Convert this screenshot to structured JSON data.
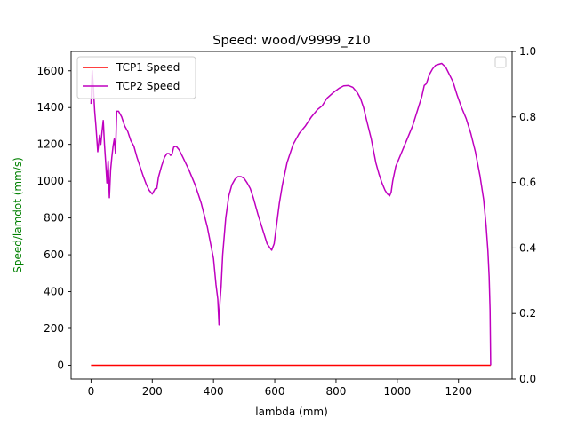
{
  "chart_data": {
    "type": "line",
    "title": "Speed: wood/v9999_z10",
    "xlabel": "lambda (mm)",
    "ylabel": "Speed/lamdot (mm/s)",
    "xlim": [
      -65,
      1375
    ],
    "ylim": [
      -75,
      1705
    ],
    "y2lim": [
      0.0,
      1.0
    ],
    "x_ticks": [
      0,
      200,
      400,
      600,
      800,
      1000,
      1200
    ],
    "y_ticks": [
      0,
      200,
      400,
      600,
      800,
      1000,
      1200,
      1400,
      1600
    ],
    "y2_ticks": [
      "0.0",
      "0.2",
      "0.4",
      "0.6",
      "0.8",
      "1.0"
    ],
    "y2_tick_values": [
      0.0,
      0.2,
      0.4,
      0.6,
      0.8,
      1.0
    ],
    "legend_position": "upper-left",
    "colors": {
      "ylabel": "#008000"
    },
    "series": [
      {
        "name": "TCP1 Speed",
        "color": "#ff0000",
        "points": [
          [
            0,
            0
          ],
          [
            1305,
            0
          ]
        ]
      },
      {
        "name": "TCP2 Speed",
        "color": "#bf00bf",
        "points": [
          [
            0,
            1420
          ],
          [
            4,
            1600
          ],
          [
            8,
            1500
          ],
          [
            12,
            1380
          ],
          [
            16,
            1300
          ],
          [
            22,
            1160
          ],
          [
            28,
            1250
          ],
          [
            32,
            1200
          ],
          [
            36,
            1270
          ],
          [
            40,
            1330
          ],
          [
            44,
            1200
          ],
          [
            48,
            1100
          ],
          [
            52,
            990
          ],
          [
            56,
            1110
          ],
          [
            60,
            910
          ],
          [
            64,
            1060
          ],
          [
            68,
            1130
          ],
          [
            72,
            1190
          ],
          [
            76,
            1230
          ],
          [
            80,
            1150
          ],
          [
            84,
            1380
          ],
          [
            90,
            1380
          ],
          [
            100,
            1350
          ],
          [
            110,
            1300
          ],
          [
            120,
            1270
          ],
          [
            130,
            1220
          ],
          [
            140,
            1190
          ],
          [
            150,
            1130
          ],
          [
            160,
            1080
          ],
          [
            170,
            1030
          ],
          [
            180,
            985
          ],
          [
            190,
            950
          ],
          [
            200,
            930
          ],
          [
            210,
            960
          ],
          [
            215,
            960
          ],
          [
            220,
            1020
          ],
          [
            230,
            1080
          ],
          [
            240,
            1130
          ],
          [
            248,
            1150
          ],
          [
            255,
            1150
          ],
          [
            260,
            1140
          ],
          [
            265,
            1150
          ],
          [
            270,
            1185
          ],
          [
            278,
            1190
          ],
          [
            288,
            1170
          ],
          [
            300,
            1130
          ],
          [
            320,
            1060
          ],
          [
            340,
            980
          ],
          [
            360,
            880
          ],
          [
            380,
            750
          ],
          [
            400,
            580
          ],
          [
            408,
            440
          ],
          [
            414,
            360
          ],
          [
            418,
            220
          ],
          [
            421,
            340
          ],
          [
            425,
            430
          ],
          [
            430,
            600
          ],
          [
            440,
            800
          ],
          [
            450,
            920
          ],
          [
            460,
            980
          ],
          [
            470,
            1010
          ],
          [
            480,
            1025
          ],
          [
            490,
            1025
          ],
          [
            500,
            1015
          ],
          [
            510,
            990
          ],
          [
            520,
            960
          ],
          [
            530,
            910
          ],
          [
            545,
            820
          ],
          [
            560,
            740
          ],
          [
            575,
            660
          ],
          [
            590,
            625
          ],
          [
            598,
            660
          ],
          [
            605,
            750
          ],
          [
            615,
            880
          ],
          [
            625,
            980
          ],
          [
            640,
            1100
          ],
          [
            660,
            1200
          ],
          [
            680,
            1260
          ],
          [
            700,
            1300
          ],
          [
            720,
            1350
          ],
          [
            740,
            1390
          ],
          [
            755,
            1410
          ],
          [
            770,
            1450
          ],
          [
            790,
            1480
          ],
          [
            810,
            1505
          ],
          [
            825,
            1518
          ],
          [
            840,
            1520
          ],
          [
            855,
            1510
          ],
          [
            870,
            1480
          ],
          [
            880,
            1450
          ],
          [
            890,
            1400
          ],
          [
            900,
            1330
          ],
          [
            915,
            1230
          ],
          [
            930,
            1100
          ],
          [
            940,
            1040
          ],
          [
            950,
            990
          ],
          [
            960,
            950
          ],
          [
            968,
            930
          ],
          [
            975,
            920
          ],
          [
            980,
            940
          ],
          [
            985,
            1000
          ],
          [
            995,
            1080
          ],
          [
            1010,
            1140
          ],
          [
            1030,
            1220
          ],
          [
            1050,
            1300
          ],
          [
            1065,
            1380
          ],
          [
            1080,
            1460
          ],
          [
            1088,
            1520
          ],
          [
            1095,
            1530
          ],
          [
            1105,
            1580
          ],
          [
            1115,
            1610
          ],
          [
            1125,
            1630
          ],
          [
            1135,
            1635
          ],
          [
            1145,
            1640
          ],
          [
            1158,
            1620
          ],
          [
            1170,
            1580
          ],
          [
            1182,
            1540
          ],
          [
            1195,
            1470
          ],
          [
            1210,
            1400
          ],
          [
            1225,
            1340
          ],
          [
            1240,
            1260
          ],
          [
            1255,
            1160
          ],
          [
            1270,
            1030
          ],
          [
            1282,
            900
          ],
          [
            1290,
            760
          ],
          [
            1296,
            620
          ],
          [
            1300,
            480
          ],
          [
            1303,
            300
          ],
          [
            1305,
            0
          ]
        ]
      }
    ],
    "legend_placeholder_right": ""
  }
}
